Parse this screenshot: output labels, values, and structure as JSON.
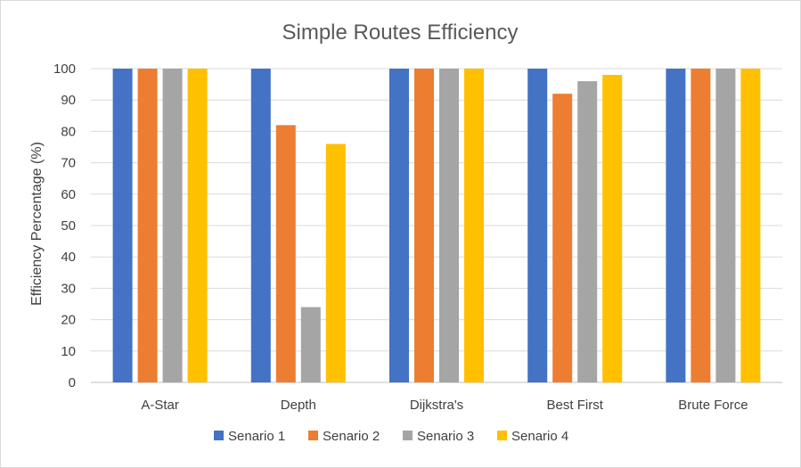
{
  "chart_data": {
    "type": "bar",
    "title": "Simple Routes Efficiency",
    "xlabel": "",
    "ylabel": "Efficiency Percentage (%)",
    "ylim": [
      0,
      100
    ],
    "yticks": [
      0,
      10,
      20,
      30,
      40,
      50,
      60,
      70,
      80,
      90,
      100
    ],
    "grid": true,
    "legend": "bottom",
    "categories": [
      "A-Star",
      "Depth",
      "Dijkstra's",
      "Best First",
      "Brute Force"
    ],
    "series": [
      {
        "name": "Senario 1",
        "color": "#4472C4",
        "values": [
          100,
          100,
          100,
          100,
          100
        ]
      },
      {
        "name": "Senario 2",
        "color": "#ED7D31",
        "values": [
          100,
          82,
          100,
          92,
          100
        ]
      },
      {
        "name": "Senario 3",
        "color": "#A5A5A5",
        "values": [
          100,
          24,
          100,
          96,
          100
        ]
      },
      {
        "name": "Senario 4",
        "color": "#FFC000",
        "values": [
          100,
          76,
          100,
          98,
          100
        ]
      }
    ]
  }
}
